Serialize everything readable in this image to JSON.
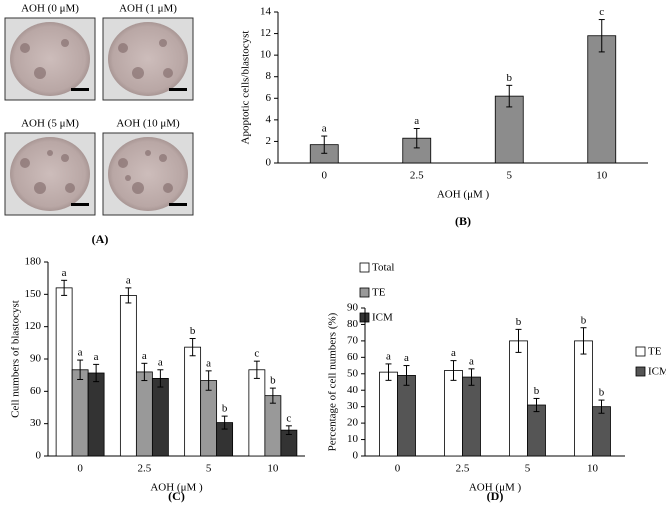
{
  "panel_a": {
    "images": [
      {
        "label": "AOH (0 μM)"
      },
      {
        "label": "AOH (1 μM)"
      },
      {
        "label": "AOH (5 μM)"
      },
      {
        "label": "AOH (10 μM)"
      }
    ],
    "panel_label": "(A)"
  },
  "chart_data": [
    {
      "type": "bar",
      "panel_label": "(B)",
      "y_label": "Apoptotic cells/blastocyst",
      "x_label": "AOH (μM )",
      "categories": [
        "0",
        "2.5",
        "5",
        "10"
      ],
      "values": [
        1.7,
        2.3,
        6.2,
        11.8
      ],
      "errors": [
        0.8,
        0.9,
        1.0,
        1.5
      ],
      "significance": [
        "a",
        "a",
        "b",
        "c"
      ],
      "color": "#8c8c8c",
      "ylim": [
        0,
        14
      ],
      "yticks": [
        0,
        2,
        4,
        6,
        8,
        10,
        12,
        14
      ]
    },
    {
      "type": "bar",
      "panel_label": "(C)",
      "y_label": "Cell numbers of blastocyst",
      "x_label": "AOH (μM )",
      "categories": [
        "0",
        "2.5",
        "5",
        "10"
      ],
      "legend": "upper right",
      "series": [
        {
          "name": "Total",
          "color": "#ffffff",
          "values": [
            156,
            149,
            101,
            80
          ],
          "errors": [
            7,
            7,
            8,
            8
          ],
          "significance": [
            "a",
            "a",
            "b",
            "c"
          ]
        },
        {
          "name": "TE",
          "color": "#999999",
          "values": [
            80,
            78,
            70,
            56
          ],
          "errors": [
            9,
            8,
            9,
            7
          ],
          "significance": [
            "a",
            "a",
            "a",
            "b"
          ]
        },
        {
          "name": "ICM",
          "color": "#333333",
          "values": [
            77,
            72,
            31,
            24
          ],
          "errors": [
            8,
            8,
            6,
            4
          ],
          "significance": [
            "a",
            "a",
            "b",
            "c"
          ]
        }
      ],
      "ylim": [
        0,
        180
      ],
      "yticks": [
        0,
        30,
        60,
        90,
        120,
        150,
        180
      ]
    },
    {
      "type": "bar",
      "panel_label": "(D)",
      "y_label": "Percentage of cell numbers (%)",
      "x_label": "AOH (μM )",
      "categories": [
        "0",
        "2.5",
        "5",
        "10"
      ],
      "legend": "right",
      "series": [
        {
          "name": "TE",
          "color": "#ffffff",
          "values": [
            51,
            52,
            70,
            70
          ],
          "errors": [
            5,
            6,
            7,
            8
          ],
          "significance": [
            "a",
            "a",
            "b",
            "b"
          ]
        },
        {
          "name": "ICM",
          "color": "#555555",
          "values": [
            49,
            48,
            31,
            30
          ],
          "errors": [
            6,
            5,
            4,
            4
          ],
          "significance": [
            "a",
            "a",
            "b",
            "b"
          ]
        }
      ],
      "ylim": [
        0,
        90
      ],
      "yticks": [
        0,
        10,
        20,
        30,
        40,
        50,
        60,
        70,
        80,
        90
      ]
    }
  ]
}
